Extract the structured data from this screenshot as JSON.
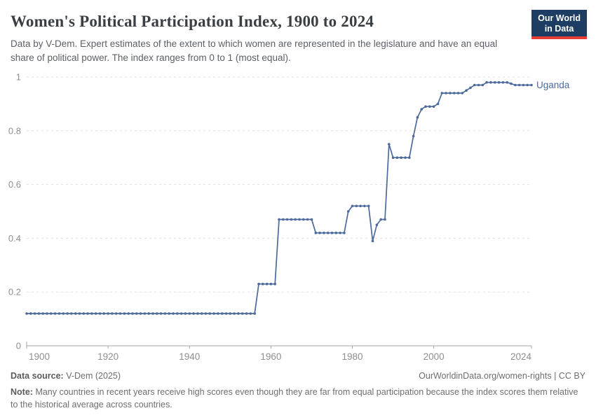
{
  "header": {
    "title": "Women's Political Participation Index, 1900 to 2024",
    "subtitle": "Data by V-Dem. Expert estimates of the extent to which women are represented in the legislature and have an equal share of political power. The index ranges from 0 to 1 (most equal).",
    "logo_line1": "Our World",
    "logo_line2": "in Data"
  },
  "colors": {
    "logo_background": "#1d3d63",
    "logo_stripe": "#e63e36",
    "series_blue": "#4C6A9C"
  },
  "chart_data": {
    "type": "line",
    "title": "Women's Political Participation Index, 1900 to 2024",
    "xlabel": "",
    "ylabel": "",
    "x_start": 1900,
    "x_range": [
      1900,
      2024
    ],
    "ylim": [
      0,
      1
    ],
    "yticks": [
      "0",
      "0.2",
      "0.4",
      "0.6",
      "0.8",
      "1"
    ],
    "xticks": [
      1900,
      1920,
      1940,
      1960,
      1980,
      2000,
      2024
    ],
    "grid": "dashed-horizontal",
    "legend_position": "end-of-line-label",
    "colors": {
      "line": "#4C6A9C",
      "grid": "#e1e1e1",
      "axis": "#a5a5a5",
      "axis_text": "#8f8f8f"
    },
    "series": [
      {
        "name": "Uganda",
        "color": "#4C6A9C",
        "values": [
          0.12,
          0.12,
          0.12,
          0.12,
          0.12,
          0.12,
          0.12,
          0.12,
          0.12,
          0.12,
          0.12,
          0.12,
          0.12,
          0.12,
          0.12,
          0.12,
          0.12,
          0.12,
          0.12,
          0.12,
          0.12,
          0.12,
          0.12,
          0.12,
          0.12,
          0.12,
          0.12,
          0.12,
          0.12,
          0.12,
          0.12,
          0.12,
          0.12,
          0.12,
          0.12,
          0.12,
          0.12,
          0.12,
          0.12,
          0.12,
          0.12,
          0.12,
          0.12,
          0.12,
          0.12,
          0.12,
          0.12,
          0.12,
          0.12,
          0.12,
          0.12,
          0.12,
          0.12,
          0.12,
          0.12,
          0.12,
          0.12,
          0.23,
          0.23,
          0.23,
          0.23,
          0.23,
          0.47,
          0.47,
          0.47,
          0.47,
          0.47,
          0.47,
          0.47,
          0.47,
          0.47,
          0.42,
          0.42,
          0.42,
          0.42,
          0.42,
          0.42,
          0.42,
          0.42,
          0.5,
          0.52,
          0.52,
          0.52,
          0.52,
          0.52,
          0.39,
          0.45,
          0.47,
          0.47,
          0.75,
          0.7,
          0.7,
          0.7,
          0.7,
          0.7,
          0.78,
          0.85,
          0.88,
          0.89,
          0.89,
          0.89,
          0.9,
          0.94,
          0.94,
          0.94,
          0.94,
          0.94,
          0.94,
          0.95,
          0.96,
          0.97,
          0.97,
          0.97,
          0.98,
          0.98,
          0.98,
          0.98,
          0.98,
          0.98,
          0.975,
          0.97,
          0.97,
          0.97,
          0.97,
          0.97
        ]
      }
    ]
  },
  "footer": {
    "source_label": "Data source:",
    "source_value": "V-Dem (2025)",
    "url": "OurWorldinData.org/women-rights",
    "separator": "|",
    "license": "CC BY",
    "note_label": "Note:",
    "note_text": "Many countries in recent years receive high scores even though they are far from equal participation because the index scores them relative to the historical average across countries."
  }
}
